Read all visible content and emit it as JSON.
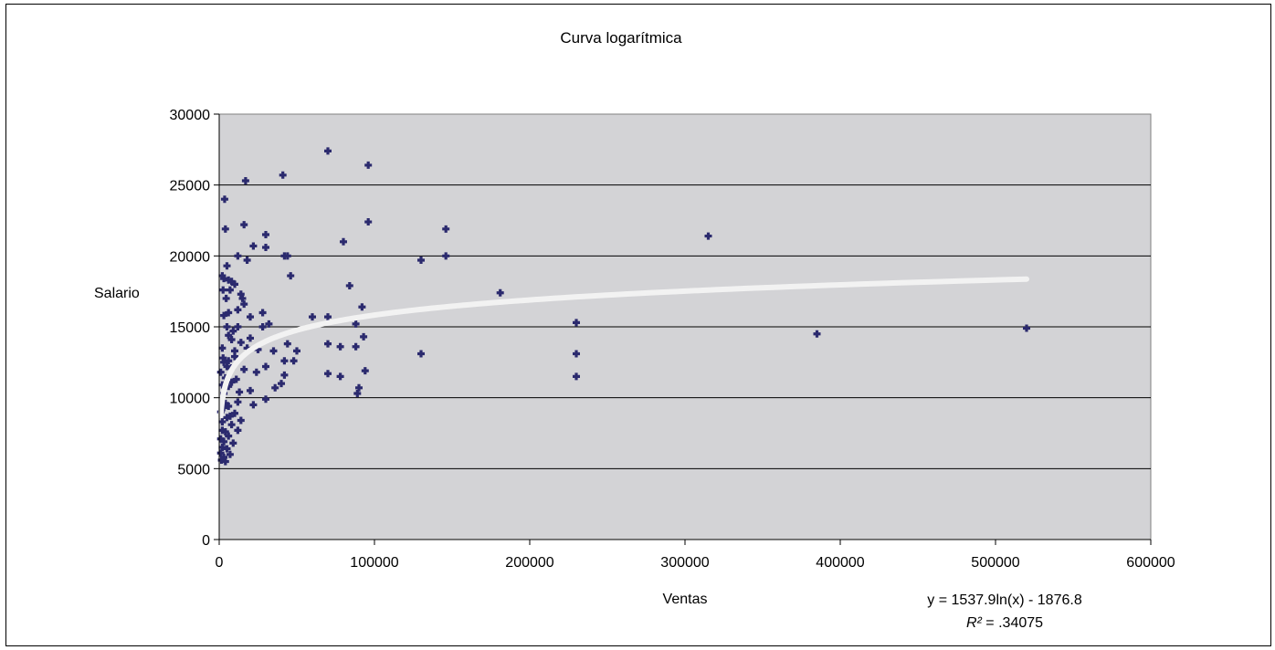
{
  "chart_data": {
    "type": "scatter",
    "title": "Curva logarítmica",
    "xlabel": "Ventas",
    "ylabel": "Salario",
    "xlim": [
      0,
      600000
    ],
    "ylim": [
      0,
      30000
    ],
    "x_ticks": [
      "0",
      "100000",
      "200000",
      "300000",
      "400000",
      "500000",
      "600000"
    ],
    "y_ticks": [
      "0",
      "5000",
      "10000",
      "15000",
      "20000",
      "25000",
      "30000"
    ],
    "grid": true,
    "legend": "none",
    "colors": {
      "plot_bg": "#d3d3d6",
      "point": "#2b2a6e",
      "trend": "#f2f2f2"
    },
    "trendline": {
      "type": "logarithmic",
      "a": 1537.9,
      "b": -1876.8,
      "x_range": [
        1000,
        520000
      ],
      "equation": "y = 1537.9ln(x) - 1876.8",
      "r2_label": "R²",
      "r2_value": " = .34075"
    },
    "points": [
      [
        70000,
        27400
      ],
      [
        96000,
        26400
      ],
      [
        41000,
        25700
      ],
      [
        17000,
        25300
      ],
      [
        3500,
        24000
      ],
      [
        96000,
        22400
      ],
      [
        16000,
        22200
      ],
      [
        4000,
        21900
      ],
      [
        146000,
        21900
      ],
      [
        30000,
        21500
      ],
      [
        315000,
        21400
      ],
      [
        80000,
        21000
      ],
      [
        22000,
        20700
      ],
      [
        30000,
        20600
      ],
      [
        42000,
        20000
      ],
      [
        44000,
        20000
      ],
      [
        146000,
        20000
      ],
      [
        12000,
        20000
      ],
      [
        18000,
        19700
      ],
      [
        130000,
        19700
      ],
      [
        5000,
        19300
      ],
      [
        46000,
        18600
      ],
      [
        2000,
        18600
      ],
      [
        3000,
        18400
      ],
      [
        6000,
        18300
      ],
      [
        8000,
        18200
      ],
      [
        10000,
        18000
      ],
      [
        84000,
        17900
      ],
      [
        2500,
        17600
      ],
      [
        7000,
        17600
      ],
      [
        181000,
        17400
      ],
      [
        14000,
        17300
      ],
      [
        15000,
        17000
      ],
      [
        16000,
        16600
      ],
      [
        92000,
        16400
      ],
      [
        28000,
        16000
      ],
      [
        6000,
        16000
      ],
      [
        60000,
        15700
      ],
      [
        70000,
        15700
      ],
      [
        20000,
        15700
      ],
      [
        3000,
        15800
      ],
      [
        230000,
        15300
      ],
      [
        88000,
        15200
      ],
      [
        32000,
        15200
      ],
      [
        28000,
        15000
      ],
      [
        12000,
        15000
      ],
      [
        5000,
        15000
      ],
      [
        385000,
        14500
      ],
      [
        520000,
        14900
      ],
      [
        93000,
        14300
      ],
      [
        20000,
        14200
      ],
      [
        8000,
        14100
      ],
      [
        44000,
        13800
      ],
      [
        70000,
        13800
      ],
      [
        78000,
        13600
      ],
      [
        88000,
        13600
      ],
      [
        2000,
        13500
      ],
      [
        25000,
        13400
      ],
      [
        35000,
        13300
      ],
      [
        50000,
        13300
      ],
      [
        10000,
        13300
      ],
      [
        130000,
        13100
      ],
      [
        230000,
        13100
      ],
      [
        42000,
        12600
      ],
      [
        48000,
        12600
      ],
      [
        6000,
        12600
      ],
      [
        3000,
        12500
      ],
      [
        30000,
        12200
      ],
      [
        24000,
        11800
      ],
      [
        42000,
        11600
      ],
      [
        70000,
        11700
      ],
      [
        78000,
        11500
      ],
      [
        94000,
        11900
      ],
      [
        230000,
        11500
      ],
      [
        1000,
        11800
      ],
      [
        4000,
        11400
      ],
      [
        8000,
        11100
      ],
      [
        40000,
        11000
      ],
      [
        36000,
        10700
      ],
      [
        90000,
        10700
      ],
      [
        89000,
        10300
      ],
      [
        20000,
        10500
      ],
      [
        30000,
        9900
      ],
      [
        12000,
        9700
      ],
      [
        22000,
        9500
      ],
      [
        6000,
        9400
      ],
      [
        3000,
        9300
      ],
      [
        10000,
        8900
      ],
      [
        5000,
        8600
      ],
      [
        14000,
        8400
      ],
      [
        2000,
        8300
      ],
      [
        8000,
        8100
      ],
      [
        12000,
        7700
      ],
      [
        4000,
        7600
      ],
      [
        6000,
        7300
      ],
      [
        1000,
        7100
      ],
      [
        3000,
        6900
      ],
      [
        9000,
        6800
      ],
      [
        2000,
        6500
      ],
      [
        5000,
        6400
      ],
      [
        1000,
        6100
      ],
      [
        7000,
        6000
      ],
      [
        3000,
        5800
      ],
      [
        1500,
        5600
      ],
      [
        4000,
        5500
      ],
      [
        2000,
        7700
      ],
      [
        6000,
        10800
      ],
      [
        8000,
        12100
      ],
      [
        10000,
        12900
      ],
      [
        14000,
        13900
      ],
      [
        5000,
        12200
      ],
      [
        9000,
        14700
      ],
      [
        12000,
        16200
      ],
      [
        3000,
        10300
      ],
      [
        7000,
        8700
      ],
      [
        11000,
        11300
      ],
      [
        4000,
        9600
      ],
      [
        16000,
        12000
      ],
      [
        18000,
        13500
      ],
      [
        2000,
        10900
      ],
      [
        1000,
        9000
      ],
      [
        6000,
        14400
      ],
      [
        4500,
        17000
      ],
      [
        2500,
        12800
      ],
      [
        13000,
        10400
      ]
    ]
  }
}
